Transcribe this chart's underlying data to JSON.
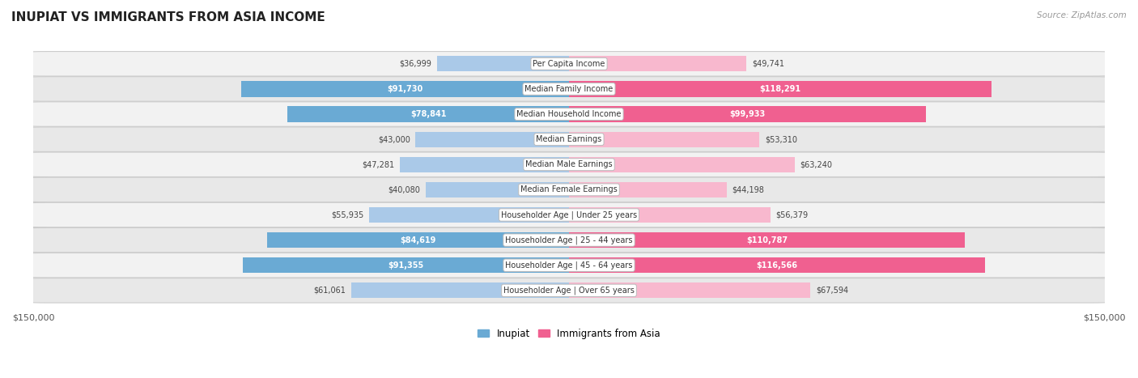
{
  "title": "INUPIAT VS IMMIGRANTS FROM ASIA INCOME",
  "source": "Source: ZipAtlas.com",
  "categories": [
    "Per Capita Income",
    "Median Family Income",
    "Median Household Income",
    "Median Earnings",
    "Median Male Earnings",
    "Median Female Earnings",
    "Householder Age | Under 25 years",
    "Householder Age | 25 - 44 years",
    "Householder Age | 45 - 64 years",
    "Householder Age | Over 65 years"
  ],
  "inupiat_values": [
    36999,
    91730,
    78841,
    43000,
    47281,
    40080,
    55935,
    84619,
    91355,
    61061
  ],
  "asia_values": [
    49741,
    118291,
    99933,
    53310,
    63240,
    44198,
    56379,
    110787,
    116566,
    67594
  ],
  "inupiat_color_light": "#aac9e8",
  "inupiat_color_dark": "#6aaad4",
  "asia_color_light": "#f8b8ce",
  "asia_color_dark": "#f06090",
  "max_value": 150000,
  "title_fontsize": 11,
  "bar_height": 0.62,
  "legend_inupiat": "Inupiat",
  "legend_asia": "Immigrants from Asia",
  "inside_threshold_inupiat": 65000,
  "inside_threshold_asia": 90000
}
